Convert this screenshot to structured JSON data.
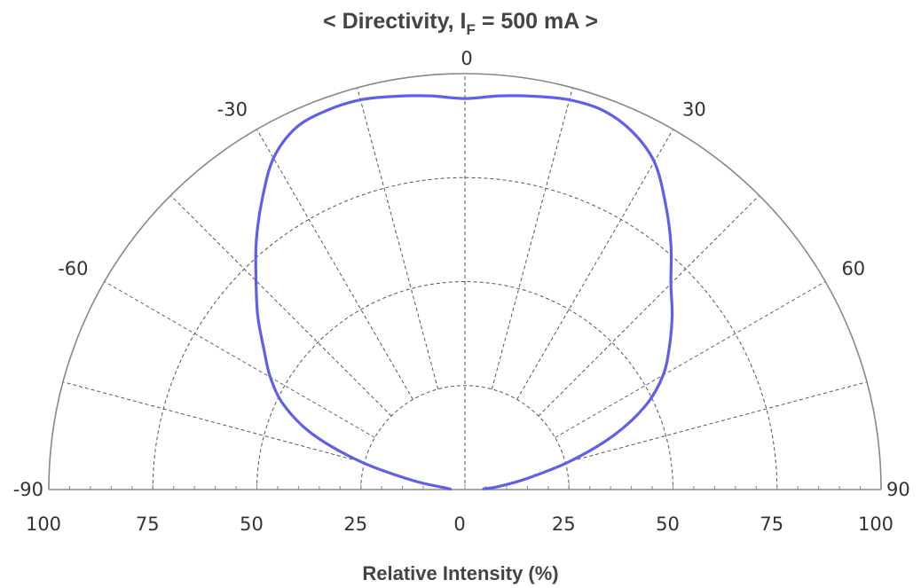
{
  "chart_data": {
    "type": "polar",
    "title_parts": {
      "prefix": "< Directivity, I",
      "subscript": "F",
      "suffix": " = 500 mA >"
    },
    "xlabel": "Relative Intensity (%)",
    "angle_labels": [
      {
        "angle": -90,
        "label": "-90"
      },
      {
        "angle": -60,
        "label": "-60"
      },
      {
        "angle": -30,
        "label": "-30"
      },
      {
        "angle": 0,
        "label": "0"
      },
      {
        "angle": 30,
        "label": "30"
      },
      {
        "angle": 60,
        "label": "60"
      },
      {
        "angle": 90,
        "label": "90"
      }
    ],
    "radial_ticks": [
      {
        "value": -100,
        "label": "100"
      },
      {
        "value": -75,
        "label": "75"
      },
      {
        "value": -50,
        "label": "50"
      },
      {
        "value": -25,
        "label": "25"
      },
      {
        "value": 0,
        "label": "0"
      },
      {
        "value": 25,
        "label": "25"
      },
      {
        "value": 50,
        "label": "50"
      },
      {
        "value": 75,
        "label": "75"
      },
      {
        "value": 100,
        "label": "100"
      }
    ],
    "radial_range": [
      0,
      100
    ],
    "angle_range": [
      -90,
      90
    ],
    "gridlines_angle_step": 15,
    "grid": true,
    "series": [
      {
        "color": "#5f5fea",
        "points": [
          {
            "angle": -88,
            "r": 3.5
          },
          {
            "angle": -85,
            "r": 5
          },
          {
            "angle": -80,
            "r": 13
          },
          {
            "angle": -75,
            "r": 26
          },
          {
            "angle": -70,
            "r": 39
          },
          {
            "angle": -65,
            "r": 48
          },
          {
            "angle": -60,
            "r": 54
          },
          {
            "angle": -55,
            "r": 59
          },
          {
            "angle": -50,
            "r": 65
          },
          {
            "angle": -45,
            "r": 71
          },
          {
            "angle": -40,
            "r": 78
          },
          {
            "angle": -35,
            "r": 85
          },
          {
            "angle": -30,
            "r": 92
          },
          {
            "angle": -25,
            "r": 96
          },
          {
            "angle": -20,
            "r": 97
          },
          {
            "angle": -15,
            "r": 97
          },
          {
            "angle": -10,
            "r": 96
          },
          {
            "angle": -5,
            "r": 95
          },
          {
            "angle": 0,
            "r": 94
          },
          {
            "angle": 5,
            "r": 95
          },
          {
            "angle": 10,
            "r": 96
          },
          {
            "angle": 15,
            "r": 97
          },
          {
            "angle": 20,
            "r": 97
          },
          {
            "angle": 25,
            "r": 95
          },
          {
            "angle": 30,
            "r": 91
          },
          {
            "angle": 35,
            "r": 84
          },
          {
            "angle": 40,
            "r": 77
          },
          {
            "angle": 45,
            "r": 70
          },
          {
            "angle": 50,
            "r": 65
          },
          {
            "angle": 55,
            "r": 60
          },
          {
            "angle": 60,
            "r": 55
          },
          {
            "angle": 65,
            "r": 48
          },
          {
            "angle": 70,
            "r": 38
          },
          {
            "angle": 75,
            "r": 26
          },
          {
            "angle": 80,
            "r": 15
          },
          {
            "angle": 85,
            "r": 8
          },
          {
            "angle": 88,
            "r": 4.5
          }
        ]
      }
    ]
  }
}
